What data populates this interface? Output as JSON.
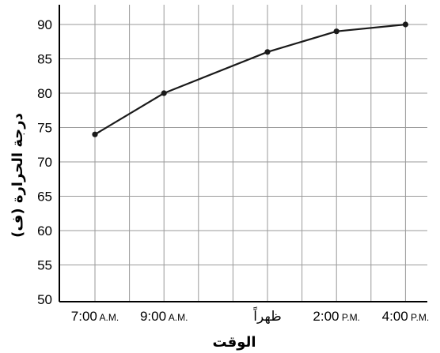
{
  "chart_data": {
    "type": "line",
    "title": "",
    "xlabel": "الوقت",
    "ylabel": "درجة الحرارة (ف)",
    "x_ticks": [
      {
        "pos": 0,
        "main": "7:00",
        "suffix": " A.M."
      },
      {
        "pos": 2,
        "main": "9:00",
        "suffix": " A.M."
      },
      {
        "pos": 5,
        "main": "ظهراً",
        "suffix": ""
      },
      {
        "pos": 7,
        "main": "2:00",
        "suffix": " P.M."
      },
      {
        "pos": 9,
        "main": "4:00",
        "suffix": " P.M."
      }
    ],
    "xlim": [
      0,
      9
    ],
    "ylim": [
      50,
      90
    ],
    "yticks": [
      50,
      55,
      60,
      65,
      70,
      75,
      80,
      85,
      90
    ],
    "grid": true,
    "series": [
      {
        "points": [
          {
            "x": "7:00 A.M.",
            "y": 74
          },
          {
            "x": "9:00 A.M.",
            "y": 80
          },
          {
            "x": "ظهراً",
            "y": 86
          },
          {
            "x": "2:00 P.M.",
            "y": 89
          },
          {
            "x": "4:00 P.M.",
            "y": 90
          }
        ],
        "x_pos": [
          0,
          2,
          5,
          7,
          9
        ]
      }
    ],
    "colors": {
      "line": "#1a1a1a",
      "grid": "#9a9a9a",
      "axis": "#000000"
    }
  }
}
